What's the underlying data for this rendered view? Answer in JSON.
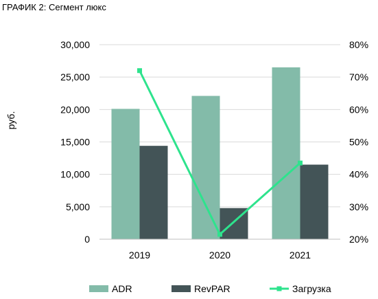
{
  "title": "ГРАФИК 2: Сегмент люкс",
  "chart_data": {
    "type": "bar+line",
    "categories": [
      "2019",
      "2020",
      "2021"
    ],
    "ylabel": "руб.",
    "y_left": {
      "min": 0,
      "max": 30000,
      "ticks": [
        0,
        5000,
        10000,
        15000,
        20000,
        25000,
        30000
      ],
      "tick_labels": [
        "0",
        "5,000",
        "10,000",
        "15,000",
        "20,000",
        "25,000",
        "30,000"
      ]
    },
    "y_right": {
      "min": 20,
      "max": 80,
      "ticks": [
        20,
        30,
        40,
        50,
        60,
        70,
        80
      ],
      "tick_labels": [
        "20%",
        "30%",
        "40%",
        "50%",
        "60%",
        "70%",
        "80%"
      ]
    },
    "series": [
      {
        "name": "ADR",
        "type": "bar",
        "axis": "left",
        "color": "#83bba9",
        "values": [
          20100,
          22100,
          26500
        ]
      },
      {
        "name": "RevPAR",
        "type": "bar",
        "axis": "left",
        "color": "#435457",
        "values": [
          14400,
          4800,
          11500
        ]
      },
      {
        "name": "Загрузка",
        "type": "line",
        "axis": "right",
        "color": "#2ee38d",
        "values": [
          72,
          21.5,
          43.5
        ]
      }
    ],
    "grid": "horizontal",
    "legend_position": "bottom"
  }
}
